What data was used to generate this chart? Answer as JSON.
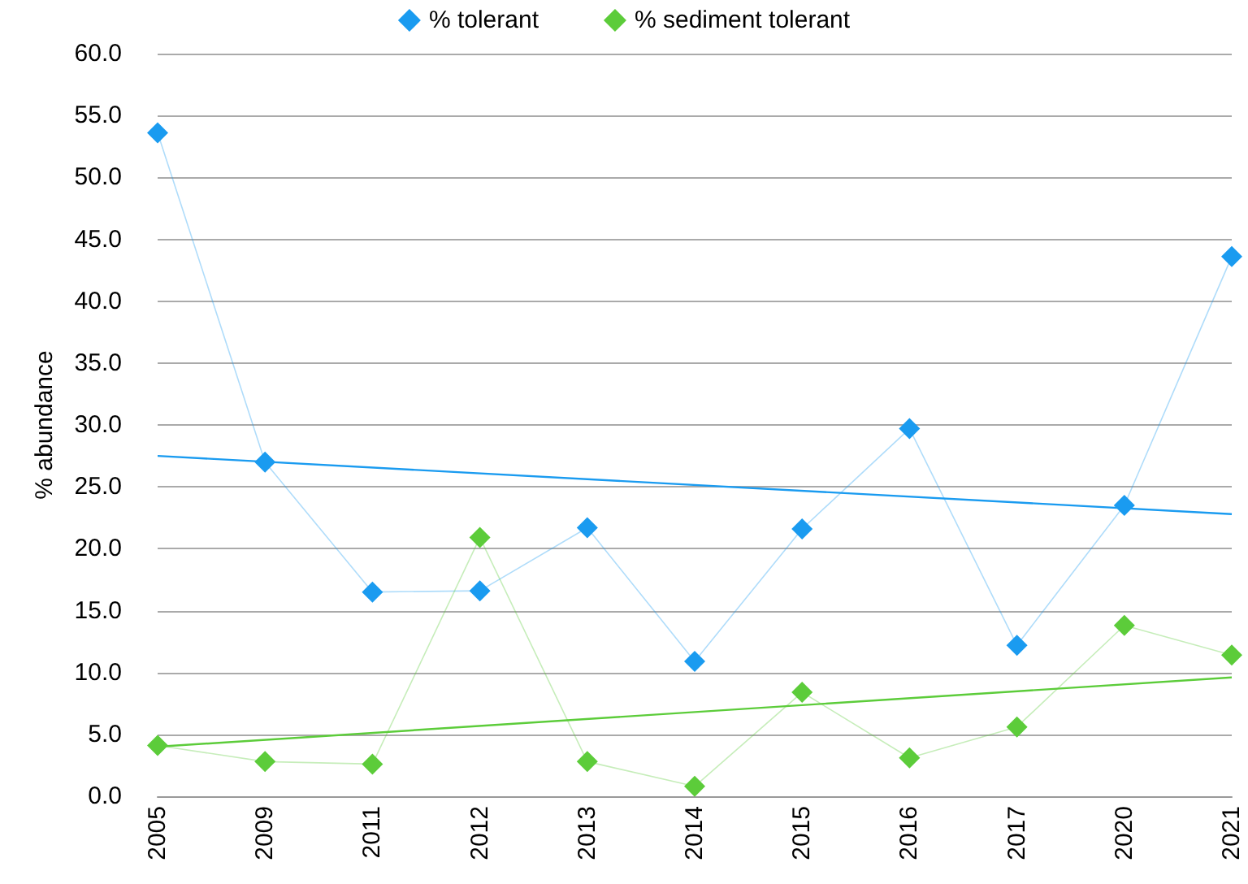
{
  "chart_data": {
    "type": "line",
    "ylabel": "% abundance",
    "categories": [
      "2005",
      "2009",
      "2011",
      "2012",
      "2013",
      "2014",
      "2015",
      "2016",
      "2017",
      "2020",
      "2021"
    ],
    "series": [
      {
        "name": "% tolerant",
        "color": "#1a9bf0",
        "marker": "diamond",
        "values": [
          53.6,
          27.0,
          16.5,
          16.6,
          21.7,
          10.9,
          21.6,
          29.7,
          12.2,
          23.5,
          43.6
        ]
      },
      {
        "name": "% sediment tolerant",
        "color": "#5ccc3a",
        "marker": "diamond",
        "values": [
          4.1,
          2.8,
          2.6,
          20.9,
          2.8,
          0.8,
          8.4,
          3.1,
          5.6,
          13.8,
          11.4
        ]
      },
      {
        "color": "#1a9bf0",
        "marker": "none",
        "values": [
          27.5,
          null,
          null,
          null,
          null,
          null,
          null,
          null,
          null,
          null,
          22.8
        ]
      },
      {
        "color": "#5ccc3a",
        "marker": "none",
        "values": [
          4.0,
          null,
          null,
          null,
          null,
          null,
          null,
          null,
          null,
          null,
          9.6
        ]
      }
    ],
    "ylim": [
      0,
      60
    ],
    "yticks": [
      {
        "value": 0,
        "label": "0.0"
      },
      {
        "value": 5,
        "label": "5.0"
      },
      {
        "value": 10,
        "label": "10.0"
      },
      {
        "value": 15,
        "label": "15.0"
      },
      {
        "value": 20,
        "label": "20.0"
      },
      {
        "value": 25,
        "label": "25.0"
      },
      {
        "value": 30,
        "label": "30.0"
      },
      {
        "value": 35,
        "label": "35.0"
      },
      {
        "value": 40,
        "label": "40.0"
      },
      {
        "value": 45,
        "label": "45.0"
      },
      {
        "value": 50,
        "label": "50.0"
      },
      {
        "value": 55,
        "label": "55.0"
      },
      {
        "value": 60,
        "label": "60.0"
      }
    ],
    "grid": "y",
    "legend": "top"
  }
}
